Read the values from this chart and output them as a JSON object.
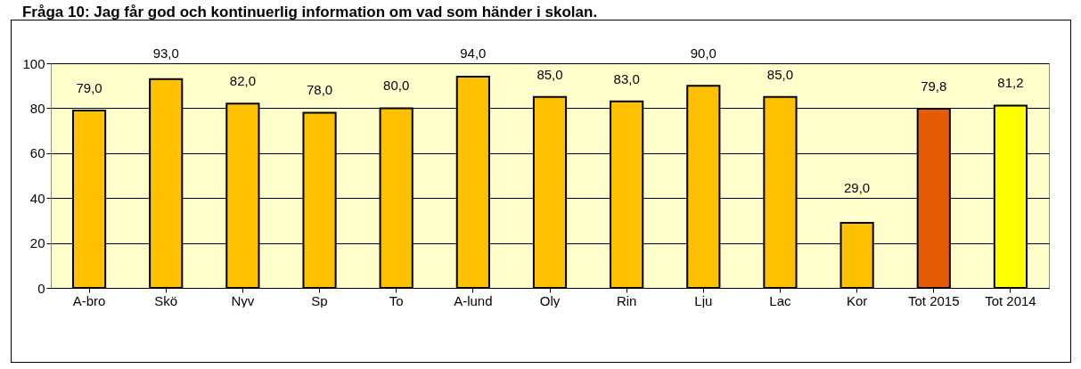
{
  "chart_data": {
    "type": "bar",
    "title": "Fråga 10: Jag får god och kontinuerlig information om vad som händer i skolan.",
    "categories": [
      "A-bro",
      "Skö",
      "Nyv",
      "Sp",
      "To",
      "A-lund",
      "Oly",
      "Rin",
      "Lju",
      "Lac",
      "Kor",
      "Tot 2015",
      "Tot 2014"
    ],
    "values": [
      79.0,
      93.0,
      82.0,
      78.0,
      80.0,
      94.0,
      85.0,
      83.0,
      90.0,
      85.0,
      29.0,
      79.8,
      81.2
    ],
    "value_labels": [
      "79,0",
      "93,0",
      "82,0",
      "78,0",
      "80,0",
      "94,0",
      "85,0",
      "83,0",
      "90,0",
      "85,0",
      "29,0",
      "79,8",
      "81,2"
    ],
    "colors": [
      "#ffc000",
      "#ffc000",
      "#ffc000",
      "#ffc000",
      "#ffc000",
      "#ffc000",
      "#ffc000",
      "#ffc000",
      "#ffc000",
      "#ffc000",
      "#ffc000",
      "#e65c06",
      "#ffff00"
    ],
    "ylim": [
      0,
      100
    ],
    "yticks": [
      0,
      20,
      40,
      60,
      80,
      100
    ],
    "grid": "y"
  }
}
